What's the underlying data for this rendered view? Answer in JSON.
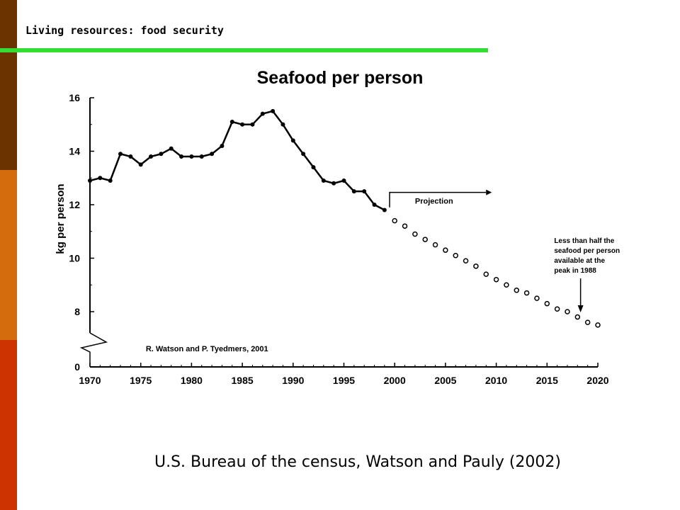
{
  "slide": {
    "heading": "Living resources: food security",
    "caption": "U.S. Bureau of the census, Watson and Pauly (2002)",
    "colors": {
      "band_top": "#6b3300",
      "band_mid": "#d46b0c",
      "band_bottom": "#cc3300",
      "heading_rule": "#33dd33"
    }
  },
  "chart_data": {
    "type": "line",
    "title": "Seafood per person",
    "xlabel": "",
    "ylabel": "kg per person",
    "xlim": [
      1970,
      2020
    ],
    "ylim": [
      0,
      16
    ],
    "y_axis_break": [
      0,
      7
    ],
    "x_ticks": [
      1970,
      1975,
      1980,
      1985,
      1990,
      1995,
      2000,
      2005,
      2010,
      2015,
      2020
    ],
    "y_ticks": [
      0,
      8,
      10,
      12,
      14,
      16
    ],
    "grid": false,
    "series": [
      {
        "name": "",
        "style": "solid-line-filled-markers",
        "x": [
          1970,
          1971,
          1972,
          1973,
          1974,
          1975,
          1976,
          1977,
          1978,
          1979,
          1980,
          1981,
          1982,
          1983,
          1984,
          1985,
          1986,
          1987,
          1988,
          1989,
          1990,
          1991,
          1992,
          1993,
          1994,
          1995,
          1996,
          1997,
          1998,
          1999
        ],
        "values": [
          12.9,
          13.0,
          12.9,
          13.9,
          13.8,
          13.5,
          13.8,
          13.9,
          14.1,
          13.8,
          13.8,
          13.8,
          13.9,
          14.2,
          15.1,
          15.0,
          15.0,
          15.4,
          15.5,
          15.0,
          14.4,
          13.9,
          13.4,
          12.9,
          12.8,
          12.9,
          12.5,
          12.5,
          12.0,
          11.8
        ]
      },
      {
        "name": "Projection",
        "style": "open-markers",
        "x": [
          2000,
          2001,
          2002,
          2003,
          2004,
          2005,
          2006,
          2007,
          2008,
          2009,
          2010,
          2011,
          2012,
          2013,
          2014,
          2015,
          2016,
          2017,
          2018,
          2019,
          2020
        ],
        "values": [
          11.4,
          11.2,
          10.9,
          10.7,
          10.5,
          10.3,
          10.1,
          9.9,
          9.7,
          9.4,
          9.2,
          9.0,
          8.8,
          8.7,
          8.5,
          8.3,
          8.1,
          8.0,
          7.8,
          7.6,
          7.5
        ]
      }
    ],
    "annotations": {
      "projection_label": "Projection",
      "peak_note": [
        "Less than half the",
        "seafood per person",
        "available at the",
        "peak in 1988"
      ],
      "credit": "R. Watson and P. Tyedmers, 2001"
    }
  }
}
